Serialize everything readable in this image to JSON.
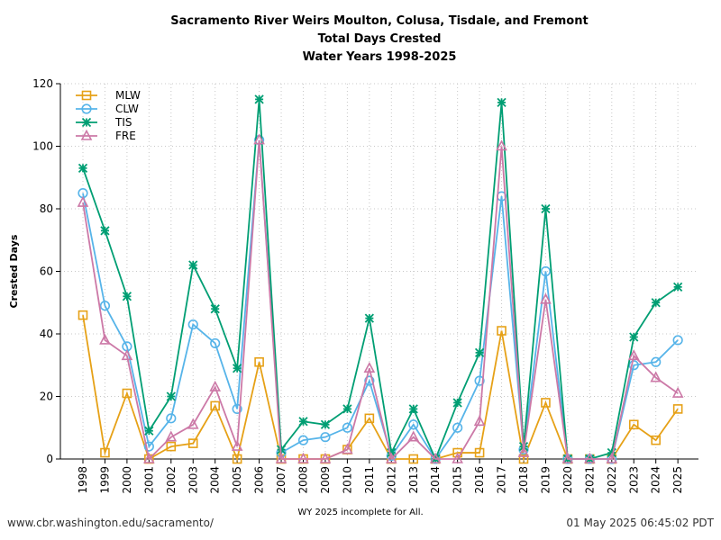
{
  "chart_data": {
    "type": "line",
    "title_lines": [
      "Sacramento River Weirs Moulton, Colusa, Tisdale, and Fremont",
      "Total Days Crested",
      "Water Years 1998-2025"
    ],
    "xlabel": "",
    "ylabel": "Crested Days",
    "ylim": [
      0,
      120
    ],
    "yticks": [
      0,
      20,
      40,
      60,
      80,
      100,
      120
    ],
    "grid": true,
    "legend_position": "top-left",
    "categories": [
      "1998",
      "1999",
      "2000",
      "2001",
      "2002",
      "2003",
      "2004",
      "2005",
      "2006",
      "2007",
      "2008",
      "2009",
      "2010",
      "2011",
      "2012",
      "2013",
      "2014",
      "2015",
      "2016",
      "2017",
      "2018",
      "2019",
      "2020",
      "2021",
      "2022",
      "2023",
      "2024",
      "2025"
    ],
    "series": [
      {
        "name": "MLW",
        "color": "#e6a117",
        "marker": "square",
        "values": [
          46,
          2,
          21,
          0,
          4,
          5,
          17,
          0,
          31,
          0,
          0,
          0,
          3,
          13,
          0,
          0,
          0,
          2,
          2,
          41,
          0,
          18,
          0,
          0,
          0,
          11,
          6,
          16
        ]
      },
      {
        "name": "CLW",
        "color": "#56b4e9",
        "marker": "circle",
        "values": [
          85,
          49,
          36,
          4,
          13,
          43,
          37,
          16,
          102,
          2,
          6,
          7,
          10,
          25,
          1,
          11,
          0,
          10,
          25,
          84,
          3,
          60,
          0,
          0,
          0,
          30,
          31,
          38
        ]
      },
      {
        "name": "TIS",
        "color": "#009e73",
        "marker": "star",
        "values": [
          93,
          73,
          52,
          9,
          20,
          62,
          48,
          29,
          115,
          3,
          12,
          11,
          16,
          45,
          2,
          16,
          0,
          18,
          34,
          114,
          4,
          80,
          0,
          0,
          2,
          39,
          50,
          55
        ]
      },
      {
        "name": "FRE",
        "color": "#cc79a7",
        "marker": "triangle",
        "values": [
          82,
          38,
          33,
          0,
          7,
          11,
          23,
          4,
          102,
          0,
          0,
          0,
          3,
          29,
          0,
          7,
          0,
          0,
          12,
          100,
          2,
          51,
          0,
          0,
          0,
          33,
          26,
          21
        ]
      }
    ]
  },
  "footer": {
    "note": "WY 2025 incomplete for All.",
    "source": "www.cbr.washington.edu/sacramento/",
    "timestamp": "01 May 2025 06:45:02 PDT"
  }
}
